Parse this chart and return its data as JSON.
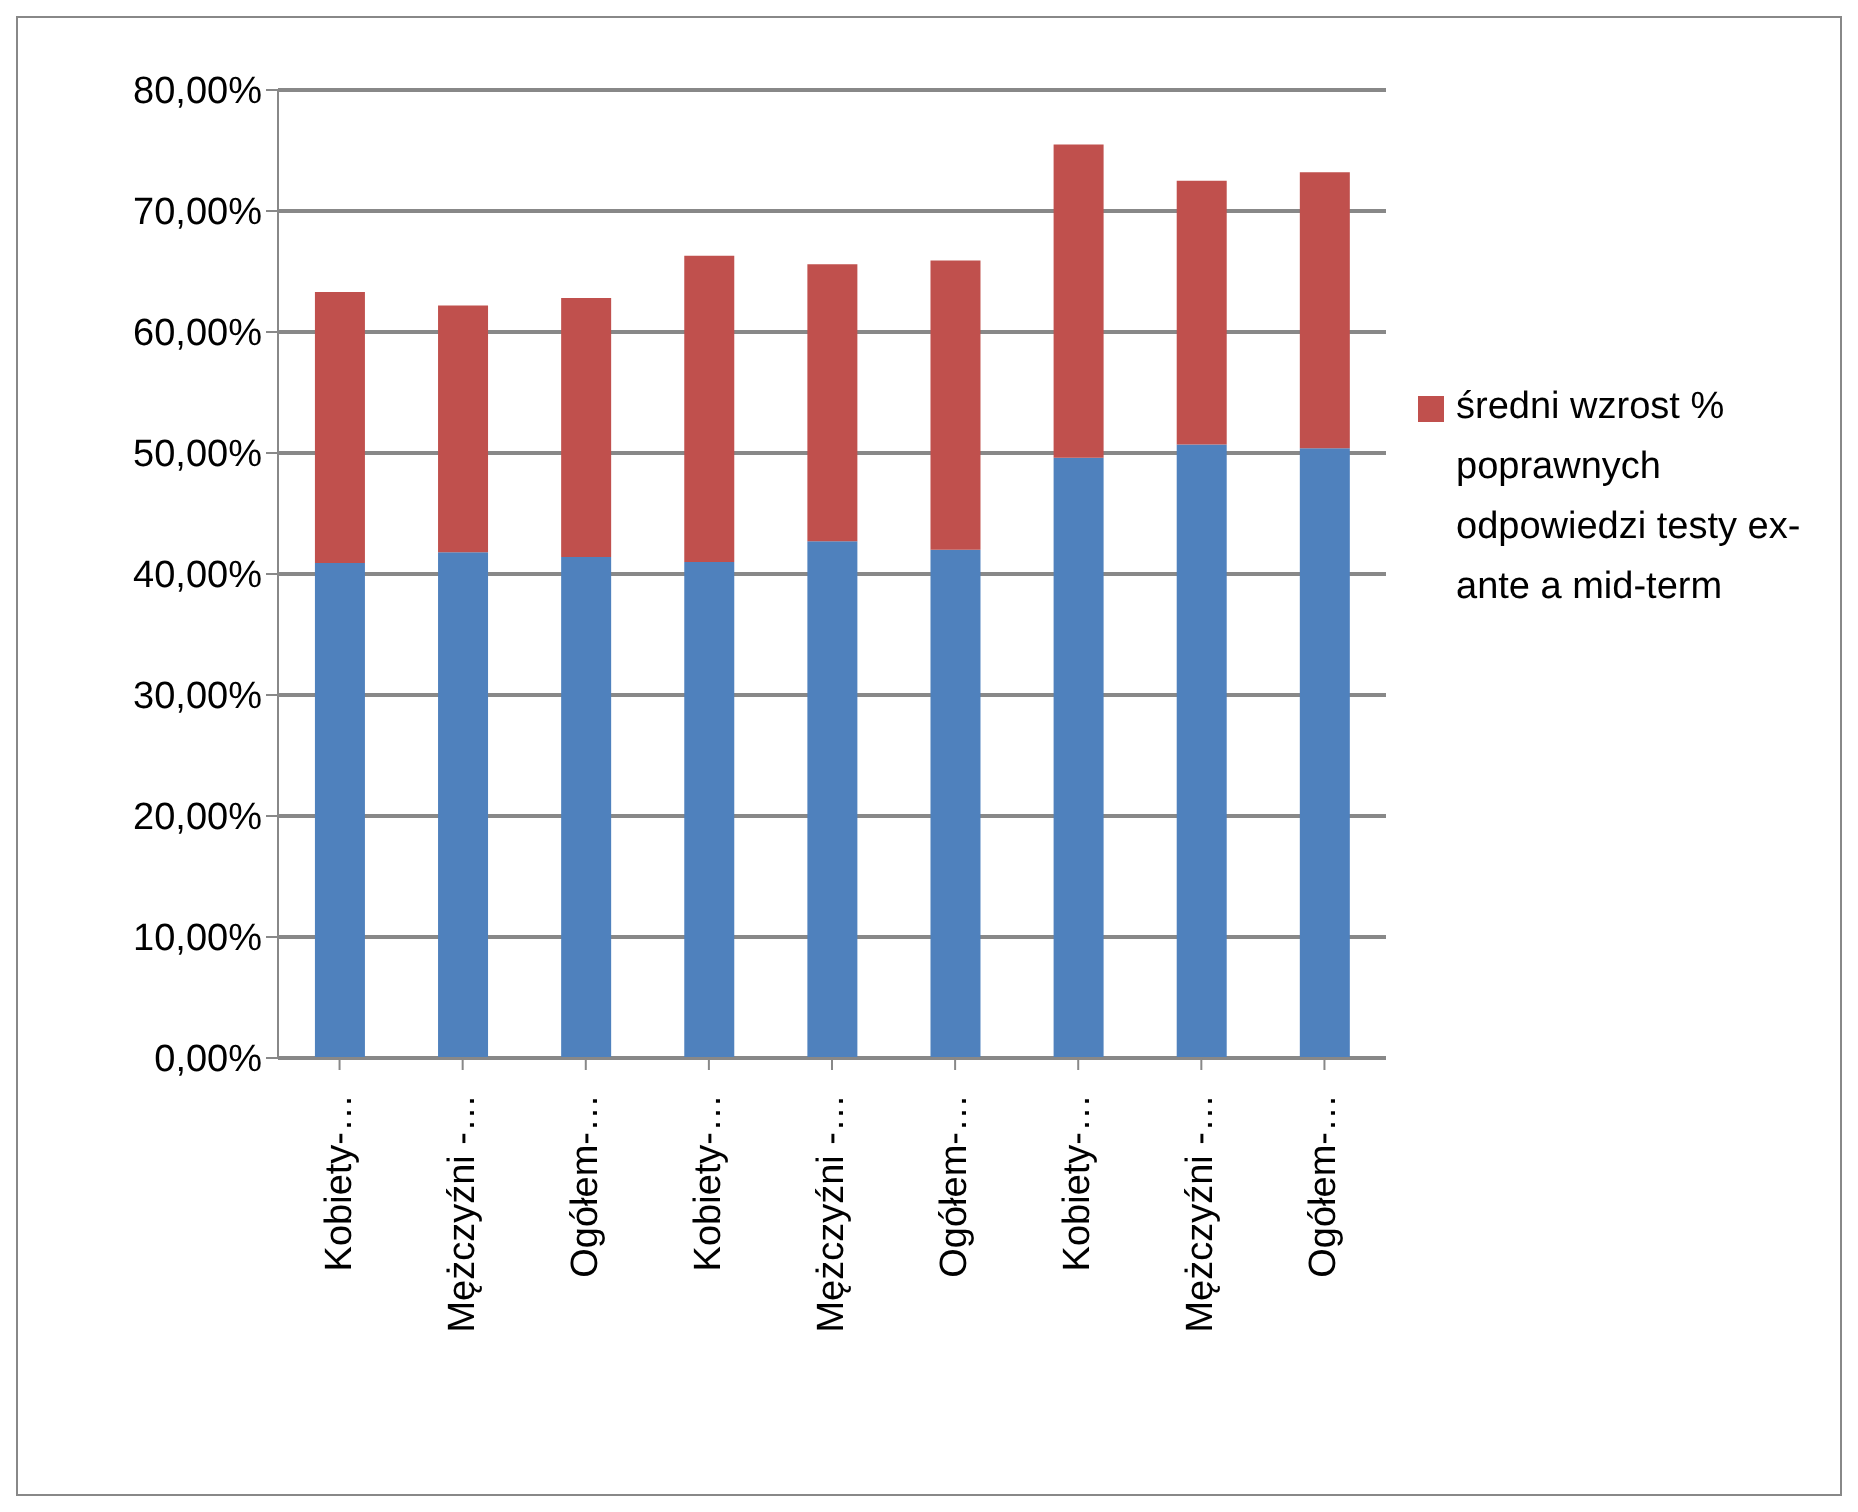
{
  "chart_data": {
    "type": "bar",
    "stacked": true,
    "categories": [
      "Kobiety-…",
      "Mężczyźni -…",
      "Ogółem-…",
      "Kobiety-…",
      "Mężczyźni -…",
      "Ogółem-…",
      "Kobiety-…",
      "Mężczyźni -…",
      "Ogółem-…"
    ],
    "series": [
      {
        "color": "#4f81bd",
        "values": [
          40.9,
          41.8,
          41.4,
          41.0,
          42.7,
          42.0,
          49.6,
          50.7,
          50.4
        ]
      },
      {
        "name": "średni wzrost % poprawnych odpowiedzi testy ex-ante a mid-term",
        "color": "#c0504d",
        "values": [
          22.4,
          20.4,
          21.4,
          25.3,
          22.9,
          23.9,
          25.9,
          21.8,
          22.8
        ]
      }
    ],
    "ylim": [
      0,
      80
    ],
    "yticks": [
      {
        "value": 0,
        "label": "0,00%"
      },
      {
        "value": 10,
        "label": "10,00%"
      },
      {
        "value": 20,
        "label": "20,00%"
      },
      {
        "value": 30,
        "label": "30,00%"
      },
      {
        "value": 40,
        "label": "40,00%"
      },
      {
        "value": 50,
        "label": "50,00%"
      },
      {
        "value": 60,
        "label": "60,00%"
      },
      {
        "value": 70,
        "label": "70,00%"
      },
      {
        "value": 80,
        "label": "80,00%"
      }
    ],
    "grid": "y",
    "legend": "right"
  }
}
